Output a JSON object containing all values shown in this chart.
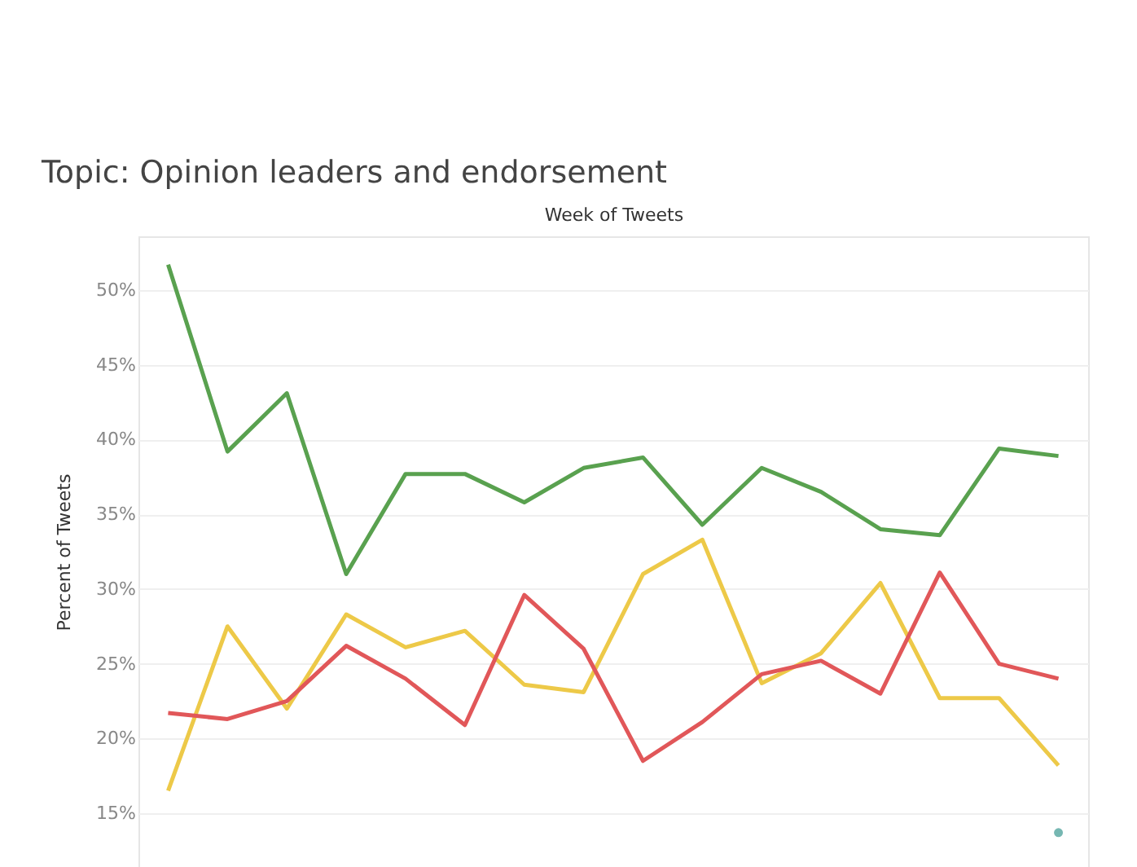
{
  "chart_data": {
    "type": "line",
    "title": "Topic: Opinion leaders and endorsement",
    "xlabel": "Week of Tweets",
    "ylabel": "Percent of Tweets",
    "categories": [
      null,
      null,
      null,
      null,
      null,
      null,
      null,
      null,
      null,
      null,
      null,
      null,
      null,
      null,
      null,
      null
    ],
    "series": [
      {
        "color": "#59a14f",
        "values": [
          51.7,
          39.2,
          43.1,
          31.0,
          37.7,
          37.7,
          35.8,
          38.1,
          38.8,
          34.3,
          38.1,
          36.5,
          34.0,
          33.6,
          39.4,
          38.9
        ]
      },
      {
        "color": "#edc948",
        "values": [
          16.5,
          27.5,
          22.0,
          28.3,
          26.1,
          27.2,
          23.6,
          23.1,
          31.0,
          33.3,
          23.7,
          25.7,
          30.4,
          22.7,
          22.7,
          18.2
        ]
      },
      {
        "color": "#e15759",
        "values": [
          21.7,
          21.3,
          22.5,
          26.2,
          24.0,
          20.9,
          29.6,
          26.0,
          18.5,
          21.1,
          24.3,
          25.2,
          23.0,
          31.1,
          25.0,
          24.0
        ]
      },
      {
        "color": "#76b7b2",
        "marker": "circle",
        "values": [
          null,
          null,
          null,
          null,
          null,
          null,
          null,
          null,
          null,
          null,
          null,
          null,
          null,
          null,
          null,
          13.7
        ]
      }
    ],
    "ylim": [
      11.4,
      53.6
    ],
    "yticks": [
      {
        "value": 15,
        "label": "15%"
      },
      {
        "value": 20,
        "label": "20%"
      },
      {
        "value": 25,
        "label": "25%"
      },
      {
        "value": 30,
        "label": "30%"
      },
      {
        "value": 35,
        "label": "35%"
      },
      {
        "value": 40,
        "label": "40%"
      },
      {
        "value": 45,
        "label": "45%"
      },
      {
        "value": 50,
        "label": "50%"
      }
    ],
    "grid": "y",
    "legend": false,
    "tick_labels": "y",
    "marker": "none",
    "line_style": "solid"
  }
}
